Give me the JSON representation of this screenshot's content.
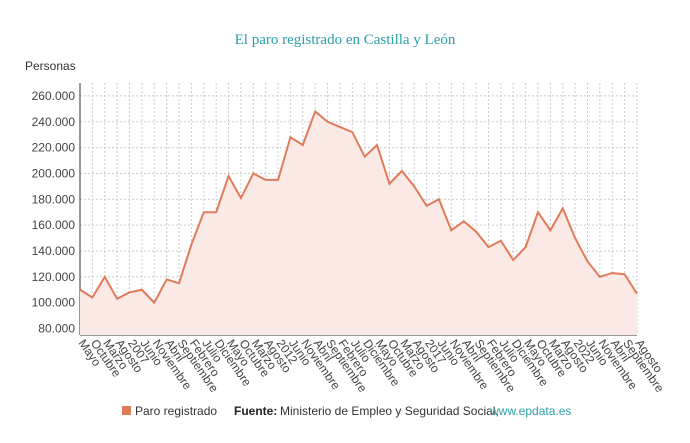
{
  "chart_data": {
    "type": "area",
    "title": "El paro registrado en Castilla y León",
    "y_label": "Personas",
    "categories": [
      "Mayo",
      "Octubre",
      "Marzo",
      "Agosto",
      "2007",
      "Junio",
      "Noviembre",
      "Abril",
      "Septiembre",
      "Febrero",
      "Julio",
      "Diciembre",
      "Mayo",
      "Octubre",
      "Marzo",
      "Agosto",
      "2012",
      "Junio",
      "Noviembre",
      "Abril",
      "Septiembre",
      "Febrero",
      "Julio",
      "Diciembre",
      "Mayo",
      "Octubre",
      "Marzo",
      "Agosto",
      "2017",
      "Junio",
      "Noviembre",
      "Abril",
      "Septiembre",
      "Febrero",
      "Julio",
      "Diciembre",
      "Mayo",
      "Octubre",
      "Marzo",
      "Agosto",
      "2022",
      "Junio",
      "Noviembre",
      "Abril",
      "Septiembre",
      "Agosto"
    ],
    "series": [
      {
        "name": "Paro registrado",
        "color": "#e07b5a",
        "fill": "#fbe9e5",
        "values": [
          110000,
          104000,
          120000,
          103000,
          108000,
          110000,
          100000,
          118000,
          115000,
          145000,
          170000,
          170000,
          198000,
          181000,
          200000,
          195000,
          195000,
          228000,
          222000,
          248000,
          240000,
          236000,
          232000,
          213000,
          222000,
          192000,
          202000,
          190000,
          175000,
          180000,
          156000,
          163000,
          155000,
          143000,
          148000,
          133000,
          143000,
          170000,
          156000,
          173000,
          150000,
          132000,
          120000,
          123000,
          122000,
          107000
        ]
      }
    ],
    "ylim": [
      75000,
      270000
    ],
    "yticks": [
      {
        "value": 80000,
        "label": "80.000"
      },
      {
        "value": 100000,
        "label": "100.000"
      },
      {
        "value": 120000,
        "label": "120.000"
      },
      {
        "value": 140000,
        "label": "140.000"
      },
      {
        "value": 160000,
        "label": "160.000"
      },
      {
        "value": 180000,
        "label": "180.000"
      },
      {
        "value": 200000,
        "label": "200.000"
      },
      {
        "value": 220000,
        "label": "220.000"
      },
      {
        "value": 240000,
        "label": "240.000"
      },
      {
        "value": 260000,
        "label": "260.000"
      }
    ],
    "grid": true,
    "source_label": "Fuente:",
    "source_text": "Ministerio de Empleo y Seguridad Social,",
    "source_link": "www.epdata.es"
  }
}
